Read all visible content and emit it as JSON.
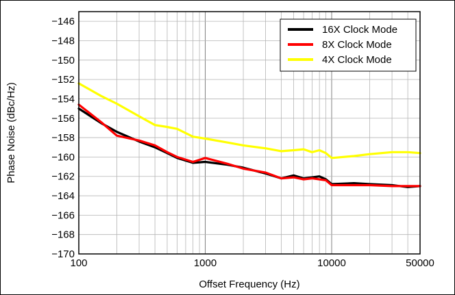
{
  "chart_data": {
    "type": "line",
    "title": "",
    "xlabel": "Offset Frequency (Hz)",
    "ylabel": "Phase Noise (dBc/Hz)",
    "x_scale": "log",
    "xlim": [
      100,
      50000
    ],
    "ylim": [
      -170,
      -145
    ],
    "x_tick_values": [
      100,
      1000,
      10000,
      50000
    ],
    "x_tick_labels": [
      "100",
      "1000",
      "10000",
      "50000"
    ],
    "y_tick_values": [
      -170,
      -168,
      -166,
      -164,
      -162,
      -160,
      -158,
      -156,
      -154,
      -152,
      -150,
      -148,
      -146
    ],
    "y_tick_labels": [
      "−170",
      "−168",
      "−166",
      "−164",
      "−162",
      "−160",
      "−158",
      "−156",
      "−154",
      "−152",
      "−150",
      "−148",
      "−146"
    ],
    "grid": true,
    "legend_position": "top-right",
    "series": [
      {
        "name": "16X Clock Mode",
        "color": "#000000",
        "x": [
          100,
          150,
          200,
          300,
          400,
          500,
          600,
          800,
          1000,
          1500,
          2000,
          3000,
          4000,
          5000,
          6000,
          7000,
          8000,
          9000,
          10000,
          15000,
          20000,
          30000,
          40000,
          50000
        ],
        "y": [
          -155.0,
          -156.5,
          -157.4,
          -158.4,
          -159.0,
          -159.6,
          -160.1,
          -160.6,
          -160.5,
          -160.8,
          -161.1,
          -161.7,
          -162.2,
          -161.9,
          -162.2,
          -162.1,
          -162.0,
          -162.3,
          -162.8,
          -162.7,
          -162.8,
          -162.9,
          -163.1,
          -163.0
        ]
      },
      {
        "name": "8X Clock Mode",
        "color": "#ff0000",
        "x": [
          100,
          150,
          200,
          300,
          400,
          500,
          600,
          800,
          1000,
          1500,
          2000,
          3000,
          4000,
          5000,
          6000,
          7000,
          8000,
          9000,
          10000,
          15000,
          20000,
          30000,
          40000,
          50000
        ],
        "y": [
          -154.6,
          -156.4,
          -157.8,
          -158.3,
          -158.8,
          -159.5,
          -160.0,
          -160.5,
          -160.1,
          -160.7,
          -161.2,
          -161.6,
          -162.2,
          -162.1,
          -162.3,
          -162.2,
          -162.3,
          -162.4,
          -162.9,
          -162.9,
          -162.9,
          -163.0,
          -163.0,
          -163.0
        ]
      },
      {
        "name": "4X Clock Mode",
        "color": "#ffff00",
        "x": [
          100,
          150,
          200,
          300,
          400,
          500,
          600,
          800,
          1000,
          1500,
          2000,
          3000,
          4000,
          5000,
          6000,
          7000,
          8000,
          9000,
          10000,
          15000,
          20000,
          30000,
          40000,
          50000
        ],
        "y": [
          -152.4,
          -153.7,
          -154.5,
          -155.8,
          -156.7,
          -156.9,
          -157.1,
          -157.9,
          -158.1,
          -158.5,
          -158.8,
          -159.1,
          -159.4,
          -159.3,
          -159.2,
          -159.5,
          -159.3,
          -159.6,
          -160.1,
          -159.9,
          -159.7,
          -159.5,
          -159.5,
          -159.6
        ]
      }
    ]
  }
}
